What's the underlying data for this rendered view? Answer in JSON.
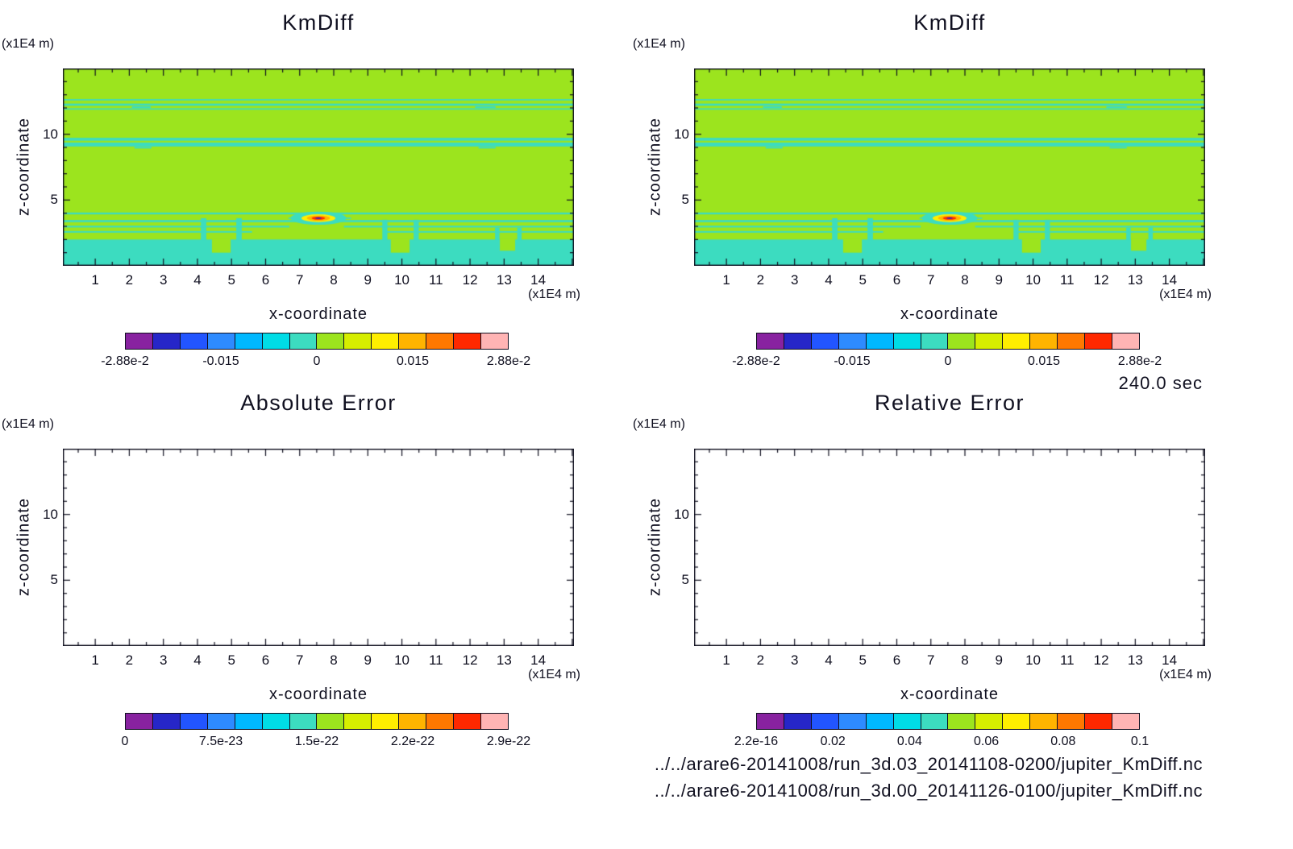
{
  "annotations": {
    "time_label": "240.0 sec",
    "paths": [
      "../../arare6-20141008/run_3d.03_20141108-0200/jupiter_KmDiff.nc",
      "../../arare6-20141008/run_3d.00_20141126-0100/jupiter_KmDiff.nc"
    ]
  },
  "colormap": [
    "#8822a0",
    "#2626c8",
    "#2255ff",
    "#2e8bff",
    "#00b8ff",
    "#00dce6",
    "#3cdcc0",
    "#9ce41e",
    "#d6ee00",
    "#ffee00",
    "#ffb400",
    "#ff7800",
    "#ff2800",
    "#ffb4b4"
  ],
  "chart_data": [
    {
      "id": "kmdiff_left",
      "type": "heatmap",
      "title": "KmDiff",
      "xlabel": "x-coordinate",
      "ylabel": "z-coordinate",
      "x_unit": "(x1E4 m)",
      "y_unit": "(x1E4 m)",
      "xlim": [
        0.05,
        15.05
      ],
      "ylim": [
        0,
        15
      ],
      "x_ticks": [
        1,
        2,
        3,
        4,
        5,
        6,
        7,
        8,
        9,
        10,
        11,
        12,
        13,
        14
      ],
      "x_minor_step": 0.5,
      "y_ticks": [
        5,
        10
      ],
      "y_minor_step": 1,
      "colorbar": {
        "labels": [
          "-2.88e-2",
          "-0.015",
          "0",
          "0.015",
          "2.88e-2"
        ],
        "positions": [
          0,
          0.25,
          0.5,
          0.75,
          1
        ],
        "range": [
          -0.0288,
          0.0288
        ]
      },
      "field": {
        "background_color": "#9ce41e",
        "stripe_color": "#3cdcc0",
        "stripes": [
          {
            "x0": 0.05,
            "x1": 15.05,
            "z": 12.62,
            "h": 0.1
          },
          {
            "x0": 0.05,
            "x1": 15.05,
            "z": 12.25,
            "h": 0.16
          },
          {
            "x0": 0.05,
            "x1": 15.05,
            "z": 11.92,
            "h": 0.1
          },
          {
            "x0": 0.05,
            "x1": 15.05,
            "z": 9.62,
            "h": 0.22
          },
          {
            "x0": 0.05,
            "x1": 15.05,
            "z": 9.22,
            "h": 0.3
          },
          {
            "x0": 0.05,
            "x1": 15.05,
            "z": 3.98,
            "h": 0.14
          },
          {
            "x0": 0.05,
            "x1": 15.05,
            "z": 3.4,
            "h": 0.16
          },
          {
            "x0": 0.05,
            "x1": 6.7,
            "z": 2.98,
            "h": 0.13
          },
          {
            "x0": 8.3,
            "x1": 15.05,
            "z": 2.98,
            "h": 0.13
          },
          {
            "x0": 0.05,
            "x1": 5.6,
            "z": 2.58,
            "h": 0.12
          },
          {
            "x0": 9.5,
            "x1": 15.05,
            "z": 2.58,
            "h": 0.12
          }
        ],
        "bottom_band": {
          "top": 2.0,
          "spikes": [
            {
              "x": 4.18,
              "w": 0.16,
              "top": 3.62
            },
            {
              "x": 5.22,
              "w": 0.16,
              "top": 3.62
            },
            {
              "x": 9.5,
              "w": 0.15,
              "top": 3.5
            },
            {
              "x": 10.42,
              "w": 0.15,
              "top": 3.5
            },
            {
              "x": 12.8,
              "w": 0.13,
              "top": 2.9
            },
            {
              "x": 13.45,
              "w": 0.13,
              "top": 2.9
            }
          ],
          "notches": [
            {
              "x": 4.7,
              "w": 0.55,
              "depth": 1.0
            },
            {
              "x": 9.95,
              "w": 0.55,
              "depth": 1.0
            },
            {
              "x": 13.1,
              "w": 0.45,
              "depth": 0.85
            }
          ]
        },
        "wiggles": [
          {
            "x": 2.35,
            "w": 0.55,
            "z": 12.06,
            "h": 0.12
          },
          {
            "x": 12.45,
            "w": 0.6,
            "z": 12.06,
            "h": 0.12
          },
          {
            "x": 2.4,
            "w": 0.5,
            "z": 8.98,
            "h": 0.12
          },
          {
            "x": 12.5,
            "w": 0.5,
            "z": 8.98,
            "h": 0.12
          },
          {
            "x": 6.78,
            "w": 0.22,
            "z": 3.62,
            "h": 0.1
          },
          {
            "x": 8.4,
            "w": 0.22,
            "z": 3.62,
            "h": 0.1
          }
        ],
        "feature": {
          "x": 7.55,
          "z": 3.62,
          "rings": [
            {
              "rx": 0.82,
              "ry": 0.5,
              "color": "#3cdcc0"
            },
            {
              "rx": 0.5,
              "ry": 0.3,
              "color": "#ffee00"
            },
            {
              "rx": 0.34,
              "ry": 0.2,
              "color": "#ffb400"
            },
            {
              "rx": 0.2,
              "ry": 0.12,
              "color": "#ff2800"
            },
            {
              "rx": 0.09,
              "ry": 0.055,
              "color": "#2626c8"
            }
          ]
        }
      }
    },
    {
      "id": "kmdiff_right",
      "type": "heatmap",
      "title": "KmDiff",
      "xlabel": "x-coordinate",
      "ylabel": "z-coordinate",
      "x_unit": "(x1E4 m)",
      "y_unit": "(x1E4 m)",
      "xlim": [
        0.05,
        15.05
      ],
      "ylim": [
        0,
        15
      ],
      "x_ticks": [
        1,
        2,
        3,
        4,
        5,
        6,
        7,
        8,
        9,
        10,
        11,
        12,
        13,
        14
      ],
      "x_minor_step": 0.5,
      "y_ticks": [
        5,
        10
      ],
      "y_minor_step": 1,
      "colorbar": {
        "labels": [
          "-2.88e-2",
          "-0.015",
          "0",
          "0.015",
          "2.88e-2"
        ],
        "positions": [
          0,
          0.25,
          0.5,
          0.75,
          1
        ],
        "range": [
          -0.0288,
          0.0288
        ]
      },
      "field": {
        "background_color": "#9ce41e",
        "stripe_color": "#3cdcc0",
        "stripes": [
          {
            "x0": 0.05,
            "x1": 15.05,
            "z": 12.62,
            "h": 0.1
          },
          {
            "x0": 0.05,
            "x1": 15.05,
            "z": 12.25,
            "h": 0.16
          },
          {
            "x0": 0.05,
            "x1": 15.05,
            "z": 11.92,
            "h": 0.1
          },
          {
            "x0": 0.05,
            "x1": 15.05,
            "z": 9.62,
            "h": 0.22
          },
          {
            "x0": 0.05,
            "x1": 15.05,
            "z": 9.22,
            "h": 0.3
          },
          {
            "x0": 0.05,
            "x1": 15.05,
            "z": 3.98,
            "h": 0.14
          },
          {
            "x0": 0.05,
            "x1": 15.05,
            "z": 3.4,
            "h": 0.16
          },
          {
            "x0": 0.05,
            "x1": 6.7,
            "z": 2.98,
            "h": 0.13
          },
          {
            "x0": 8.3,
            "x1": 15.05,
            "z": 2.98,
            "h": 0.13
          },
          {
            "x0": 0.05,
            "x1": 5.6,
            "z": 2.58,
            "h": 0.12
          },
          {
            "x0": 9.5,
            "x1": 15.05,
            "z": 2.58,
            "h": 0.12
          }
        ],
        "bottom_band": {
          "top": 2.0,
          "spikes": [
            {
              "x": 4.18,
              "w": 0.16,
              "top": 3.62
            },
            {
              "x": 5.22,
              "w": 0.16,
              "top": 3.62
            },
            {
              "x": 9.5,
              "w": 0.15,
              "top": 3.5
            },
            {
              "x": 10.42,
              "w": 0.15,
              "top": 3.5
            },
            {
              "x": 12.8,
              "w": 0.13,
              "top": 2.9
            },
            {
              "x": 13.45,
              "w": 0.13,
              "top": 2.9
            }
          ],
          "notches": [
            {
              "x": 4.7,
              "w": 0.55,
              "depth": 1.0
            },
            {
              "x": 9.95,
              "w": 0.55,
              "depth": 1.0
            },
            {
              "x": 13.1,
              "w": 0.45,
              "depth": 0.85
            }
          ]
        },
        "wiggles": [
          {
            "x": 2.35,
            "w": 0.55,
            "z": 12.06,
            "h": 0.12
          },
          {
            "x": 12.45,
            "w": 0.6,
            "z": 12.06,
            "h": 0.12
          },
          {
            "x": 2.4,
            "w": 0.5,
            "z": 8.98,
            "h": 0.12
          },
          {
            "x": 12.5,
            "w": 0.5,
            "z": 8.98,
            "h": 0.12
          },
          {
            "x": 6.78,
            "w": 0.22,
            "z": 3.62,
            "h": 0.1
          },
          {
            "x": 8.4,
            "w": 0.22,
            "z": 3.62,
            "h": 0.1
          }
        ],
        "feature": {
          "x": 7.55,
          "z": 3.62,
          "rings": [
            {
              "rx": 0.82,
              "ry": 0.5,
              "color": "#3cdcc0"
            },
            {
              "rx": 0.5,
              "ry": 0.3,
              "color": "#ffee00"
            },
            {
              "rx": 0.34,
              "ry": 0.2,
              "color": "#ffb400"
            },
            {
              "rx": 0.2,
              "ry": 0.12,
              "color": "#ff2800"
            },
            {
              "rx": 0.09,
              "ry": 0.055,
              "color": "#2626c8"
            }
          ]
        }
      }
    },
    {
      "id": "absolute_error",
      "type": "heatmap",
      "title": "Absolute Error",
      "xlabel": "x-coordinate",
      "ylabel": "z-coordinate",
      "x_unit": "(x1E4 m)",
      "y_unit": "(x1E4 m)",
      "xlim": [
        0.05,
        15.05
      ],
      "ylim": [
        0,
        15
      ],
      "x_ticks": [
        1,
        2,
        3,
        4,
        5,
        6,
        7,
        8,
        9,
        10,
        11,
        12,
        13,
        14
      ],
      "x_minor_step": 0.5,
      "y_ticks": [
        5,
        10
      ],
      "y_minor_step": 1,
      "colorbar": {
        "labels": [
          "0",
          "7.5e-23",
          "1.5e-22",
          "2.2e-22",
          "2.9e-22"
        ],
        "positions": [
          0,
          0.25,
          0.5,
          0.75,
          1
        ],
        "range": [
          0,
          2.9e-22
        ]
      },
      "field": null
    },
    {
      "id": "relative_error",
      "type": "heatmap",
      "title": "Relative Error",
      "xlabel": "x-coordinate",
      "ylabel": "z-coordinate",
      "x_unit": "(x1E4 m)",
      "y_unit": "(x1E4 m)",
      "xlim": [
        0.05,
        15.05
      ],
      "ylim": [
        0,
        15
      ],
      "x_ticks": [
        1,
        2,
        3,
        4,
        5,
        6,
        7,
        8,
        9,
        10,
        11,
        12,
        13,
        14
      ],
      "x_minor_step": 0.5,
      "y_ticks": [
        5,
        10
      ],
      "y_minor_step": 1,
      "colorbar": {
        "labels": [
          "2.2e-16",
          "0.02",
          "0.04",
          "0.06",
          "0.08",
          "0.1"
        ],
        "positions": [
          0,
          0.2,
          0.4,
          0.6,
          0.8,
          1
        ],
        "range": [
          2.2e-16,
          0.1
        ]
      },
      "field": null
    }
  ]
}
